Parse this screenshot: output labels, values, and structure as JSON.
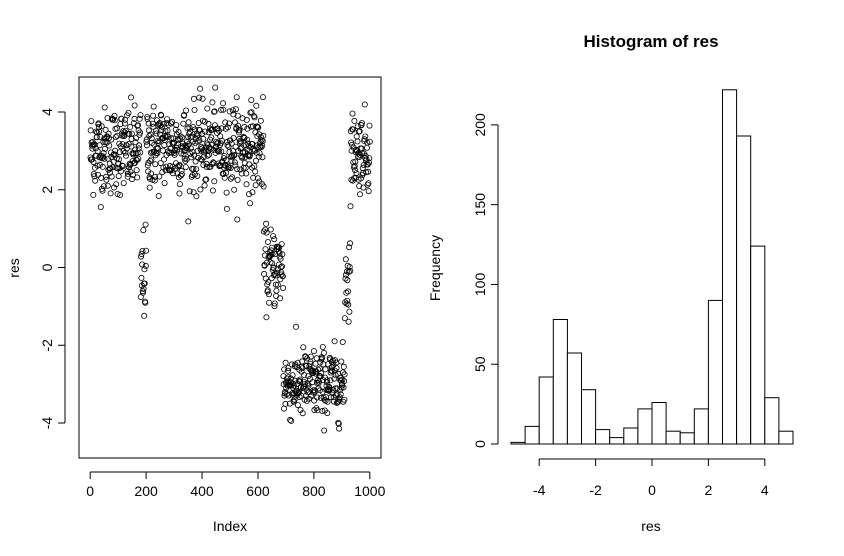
{
  "chart_data": [
    {
      "type": "scatter",
      "title": "",
      "xlabel": "Index",
      "ylabel": "res",
      "xlim": [
        -40,
        1040
      ],
      "ylim": [
        -4.9,
        4.9
      ],
      "xticks": [
        0,
        200,
        400,
        600,
        800,
        1000
      ],
      "yticks": [
        -4,
        -2,
        0,
        2,
        4
      ],
      "xtick_labels": [
        "0",
        "200",
        "400",
        "600",
        "800",
        "1000"
      ],
      "ytick_labels": [
        "-4",
        "-2",
        "0",
        "2",
        "4"
      ],
      "point_style": "open-circle",
      "grid": false,
      "segments": [
        {
          "index_range": [
            1,
            180
          ],
          "center": 3.0,
          "spread": 0.55,
          "count": 180
        },
        {
          "index_range": [
            181,
            200
          ],
          "center": -0.2,
          "spread": 0.6,
          "count": 20
        },
        {
          "index_range": [
            201,
            620
          ],
          "center": 3.1,
          "spread": 0.55,
          "count": 420
        },
        {
          "index_range": [
            621,
            690
          ],
          "center": 0.0,
          "spread": 0.5,
          "count": 70
        },
        {
          "index_range": [
            691,
            910
          ],
          "center": -3.0,
          "spread": 0.45,
          "count": 220
        },
        {
          "index_range": [
            911,
            930
          ],
          "center": -0.2,
          "spread": 0.7,
          "count": 20
        },
        {
          "index_range": [
            931,
            1000
          ],
          "center": 3.0,
          "spread": 0.5,
          "count": 70
        }
      ]
    },
    {
      "type": "bar",
      "title": "Histogram of res",
      "xlabel": "res",
      "ylabel": "Frequency",
      "xlim": [
        -5,
        5
      ],
      "ylim": [
        0,
        230
      ],
      "xticks": [
        -4,
        -2,
        0,
        2,
        4
      ],
      "yticks": [
        0,
        50,
        100,
        150,
        200
      ],
      "xtick_labels": [
        "-4",
        "-2",
        "0",
        "2",
        "4"
      ],
      "ytick_labels": [
        "0",
        "50",
        "100",
        "150",
        "200"
      ],
      "bin_width": 0.5,
      "bins": [
        {
          "left": -5.0,
          "right": -4.5,
          "count": 1
        },
        {
          "left": -4.5,
          "right": -4.0,
          "count": 11
        },
        {
          "left": -4.0,
          "right": -3.5,
          "count": 42
        },
        {
          "left": -3.5,
          "right": -3.0,
          "count": 78
        },
        {
          "left": -3.0,
          "right": -2.5,
          "count": 57
        },
        {
          "left": -2.5,
          "right": -2.0,
          "count": 34
        },
        {
          "left": -2.0,
          "right": -1.5,
          "count": 9
        },
        {
          "left": -1.5,
          "right": -1.0,
          "count": 4
        },
        {
          "left": -1.0,
          "right": -0.5,
          "count": 10
        },
        {
          "left": -0.5,
          "right": 0.0,
          "count": 22
        },
        {
          "left": 0.0,
          "right": 0.5,
          "count": 26
        },
        {
          "left": 0.5,
          "right": 1.0,
          "count": 8
        },
        {
          "left": 1.0,
          "right": 1.5,
          "count": 7
        },
        {
          "left": 1.5,
          "right": 2.0,
          "count": 22
        },
        {
          "left": 2.0,
          "right": 2.5,
          "count": 90
        },
        {
          "left": 2.5,
          "right": 3.0,
          "count": 222
        },
        {
          "left": 3.0,
          "right": 3.5,
          "count": 193
        },
        {
          "left": 3.5,
          "right": 4.0,
          "count": 124
        },
        {
          "left": 4.0,
          "right": 4.5,
          "count": 29
        },
        {
          "left": 4.5,
          "right": 5.0,
          "count": 8
        }
      ]
    }
  ]
}
